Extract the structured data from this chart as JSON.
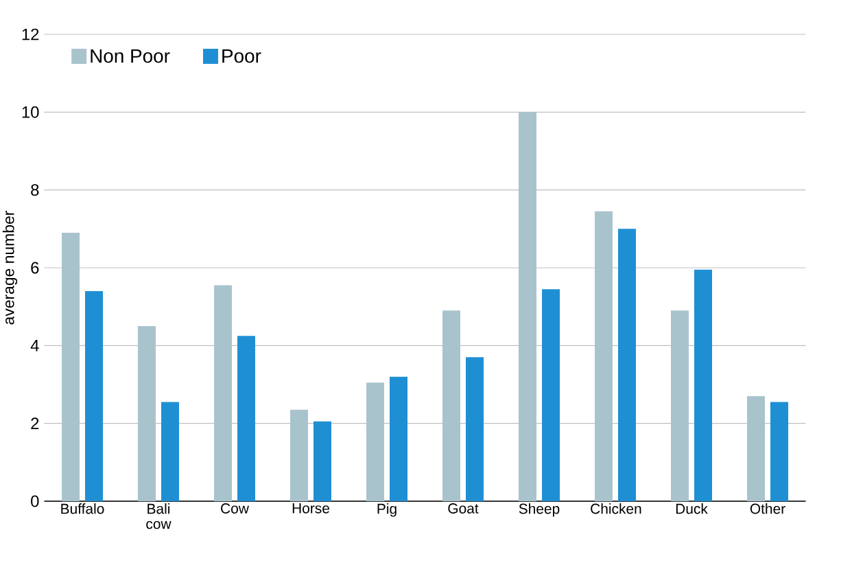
{
  "chart_data": {
    "type": "bar",
    "ylabel": "average number",
    "categories": [
      "Buffalo",
      "Bali cow",
      "Cow",
      "Horse",
      "Pig",
      "Goat",
      "Sheep",
      "Chicken",
      "Duck",
      "Other"
    ],
    "series": [
      {
        "name": "Non Poor",
        "color": "#a9c3cd",
        "values": [
          6.9,
          4.5,
          5.55,
          2.35,
          3.05,
          4.9,
          10,
          7.45,
          4.9,
          2.7
        ]
      },
      {
        "name": "Poor",
        "color": "#1f8fd4",
        "values": [
          5.4,
          2.55,
          4.25,
          2.05,
          3.2,
          3.7,
          5.45,
          7,
          5.95,
          2.55
        ]
      }
    ],
    "ylim": [
      0,
      12
    ],
    "yticks": [
      0,
      2,
      4,
      6,
      8,
      10,
      12
    ],
    "grid": "y",
    "legend": "top left"
  }
}
